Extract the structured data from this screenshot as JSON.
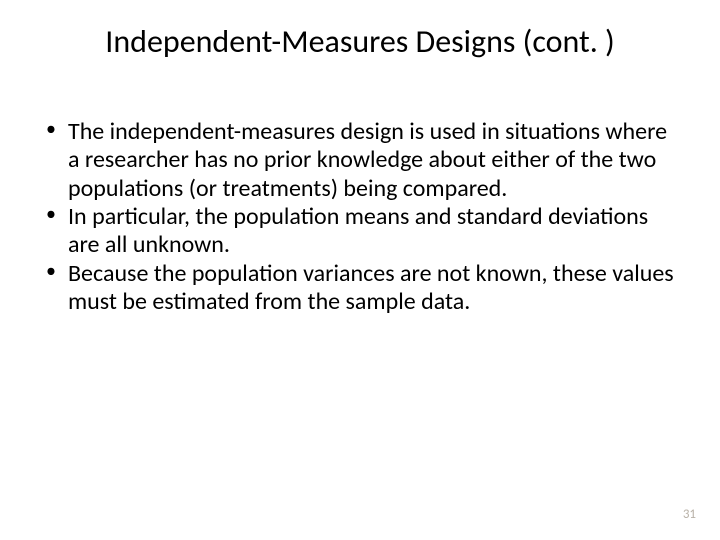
{
  "slide": {
    "title": "Independent-Measures Designs (cont. )",
    "bullets": [
      "The independent-measures design is used in situations where a researcher has no prior knowledge about either of the two populations (or treatments) being compared.",
      "In particular, the population means and standard deviations are all unknown.",
      "Because the population variances are not known, these values must be estimated from the sample data."
    ],
    "page_number": "31"
  },
  "style": {
    "background_color": "#ffffff",
    "title_fontsize": 32,
    "body_fontsize": 24,
    "text_color": "#000000",
    "pagenum_color": "#b9b2a8",
    "font_family": "Calibri"
  }
}
